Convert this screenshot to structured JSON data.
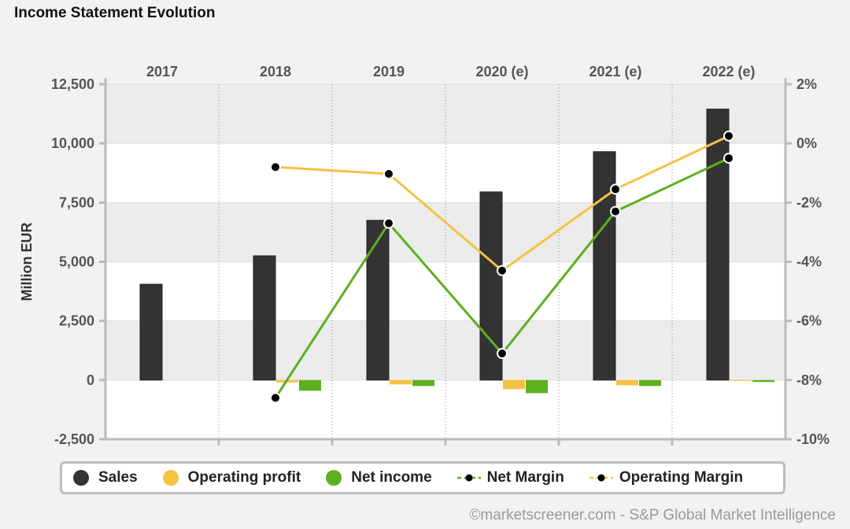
{
  "chart_data": {
    "type": "bar",
    "title": "Income Statement Evolution",
    "categories": [
      "2017",
      "2018",
      "2019",
      "2020 (e)",
      "2021 (e)",
      "2022 (e)"
    ],
    "ylabel": "Million EUR",
    "ylim": [
      -2500,
      12500
    ],
    "yticks": [
      -2500,
      0,
      2500,
      5000,
      7500,
      10000,
      12500
    ],
    "ytick_labels": [
      "-2,500",
      "0",
      "2,500",
      "5,000",
      "7,500",
      "10,000",
      "12,500"
    ],
    "y2lim": [
      -10,
      2
    ],
    "y2ticks": [
      -10,
      -8,
      -6,
      -4,
      -2,
      0,
      2
    ],
    "y2tick_labels": [
      "-10%",
      "-8%",
      "-6%",
      "-4%",
      "-2%",
      "0%",
      "2%"
    ],
    "series": [
      {
        "name": "Sales",
        "kind": "bar",
        "color": "#333333",
        "values": [
          4050,
          5250,
          6750,
          7950,
          9650,
          11450
        ]
      },
      {
        "name": "Operating profit",
        "kind": "bar",
        "color": "#f5c242",
        "values": [
          null,
          -100,
          -180,
          -380,
          -220,
          -20
        ]
      },
      {
        "name": "Net income",
        "kind": "bar",
        "color": "#5cb01e",
        "values": [
          null,
          -450,
          -250,
          -550,
          -250,
          -80
        ]
      },
      {
        "name": "Net Margin",
        "kind": "line",
        "axis": "right",
        "color": "#5cb01e",
        "values": [
          null,
          -8.6,
          -2.7,
          -7.1,
          -2.3,
          -0.5
        ]
      },
      {
        "name": "Operating Margin",
        "kind": "line",
        "axis": "right",
        "color": "#f5c242",
        "values": [
          null,
          -0.8,
          -1.03,
          -4.3,
          -1.55,
          0.25
        ]
      }
    ],
    "legend_position": "bottom"
  },
  "legend": {
    "sales": "Sales",
    "operating_profit": "Operating profit",
    "net_income": "Net income",
    "net_margin": "Net Margin",
    "operating_margin": "Operating Margin"
  },
  "credit": "©marketscreener.com - S&P Global Market Intelligence"
}
